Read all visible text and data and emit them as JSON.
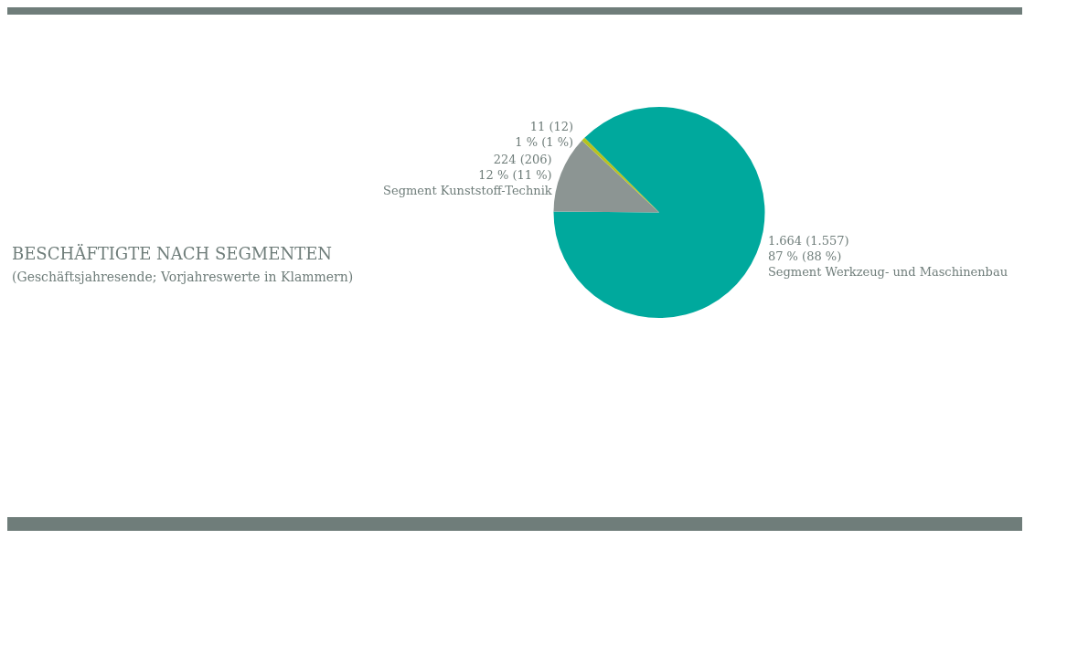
{
  "chart_data": {
    "type": "pie",
    "title": "BESCHÄFTIGTE NACH SEGMENTEN",
    "subtitle": "(Geschäftsjahresende; Vorjahreswerte in Klammern)",
    "categories": [
      "Segment Werkzeug- und Maschinenbau",
      "Segment Kunststoff-Technik",
      null
    ],
    "values": [
      1664,
      224,
      11
    ],
    "value_labels": [
      "1.664 (1.557)\n87 % (88 %)",
      "224 (206)\n12 % (11 %)",
      "11 (12)\n1 % (1 %)"
    ],
    "colors": [
      "#00a99d",
      "#8c9593",
      "#b5c21f"
    ]
  }
}
